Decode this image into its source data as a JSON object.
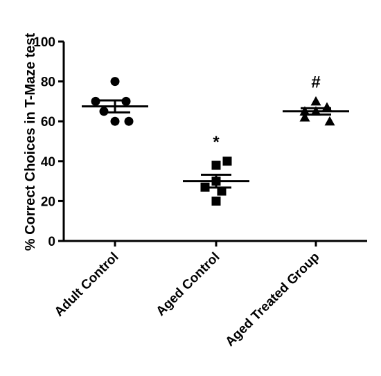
{
  "chart_data": {
    "type": "scatter",
    "ylabel": "% Correct Choices in T-Maze test",
    "ylim": [
      0,
      100
    ],
    "yticks": [
      "0",
      "20",
      "40",
      "60",
      "80",
      "100"
    ],
    "categories": [
      "Adult Control",
      "Aged Control",
      "Aged Treated Group"
    ],
    "series": [
      {
        "marker": "circle",
        "values": [
          80,
          70,
          70,
          65,
          60,
          60
        ],
        "mean": 67.5,
        "sem": 3.0,
        "annotation": ""
      },
      {
        "marker": "square",
        "values": [
          40,
          38,
          30,
          27,
          25,
          20
        ],
        "mean": 30,
        "sem": 3.2,
        "annotation": "*"
      },
      {
        "marker": "triangle",
        "values": [
          70,
          65,
          67,
          65,
          62,
          60
        ],
        "mean": 65,
        "sem": 1.6,
        "annotation": "#"
      }
    ],
    "marker_color": "#000000"
  }
}
